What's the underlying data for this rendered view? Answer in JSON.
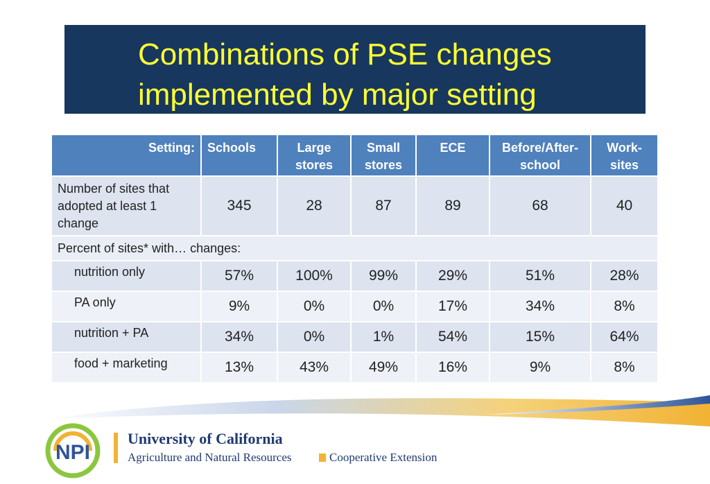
{
  "title": "Combinations of PSE changes implemented by major setting",
  "header": {
    "setting_label": "Setting:",
    "columns": [
      "Schools",
      "Large stores",
      "Small stores",
      "ECE",
      "Before/After-school",
      "Work-sites"
    ],
    "columns_display": [
      [
        "Schools"
      ],
      [
        "Large",
        "stores"
      ],
      [
        "Small",
        "stores"
      ],
      [
        "ECE"
      ],
      [
        "Before/After-",
        "school"
      ],
      [
        "Work-",
        "sites"
      ]
    ]
  },
  "count_row": {
    "label_lines": [
      "Number of sites that",
      "adopted at least 1",
      "change"
    ],
    "values": [
      "345",
      "28",
      "87",
      "89",
      "68",
      "40"
    ]
  },
  "percent_header": "Percent of sites* with… changes:",
  "rows": [
    {
      "label": "nutrition only",
      "values": [
        "57%",
        "100%",
        "99%",
        "29%",
        "51%",
        "28%"
      ]
    },
    {
      "label": "PA only",
      "values": [
        "9%",
        "0%",
        "0%",
        "17%",
        "34%",
        "8%"
      ]
    },
    {
      "label": "nutrition + PA",
      "values": [
        "34%",
        "0%",
        "1%",
        "54%",
        "15%",
        "64%"
      ]
    },
    {
      "label": "food + marketing",
      "values": [
        "13%",
        "43%",
        "49%",
        "16%",
        "9%",
        "8%"
      ]
    }
  ],
  "footer": {
    "logo_text": "NPI",
    "university": "University of California",
    "division": "Agriculture and Natural Resources",
    "extension": "Cooperative Extension"
  },
  "colors": {
    "title_bg": "#17375e",
    "title_text": "#ffff33",
    "header_bg": "#4f81bd",
    "row_light": "#eef1f7",
    "row_dark": "#dde3ef",
    "accent_gold": "#f2b233"
  }
}
